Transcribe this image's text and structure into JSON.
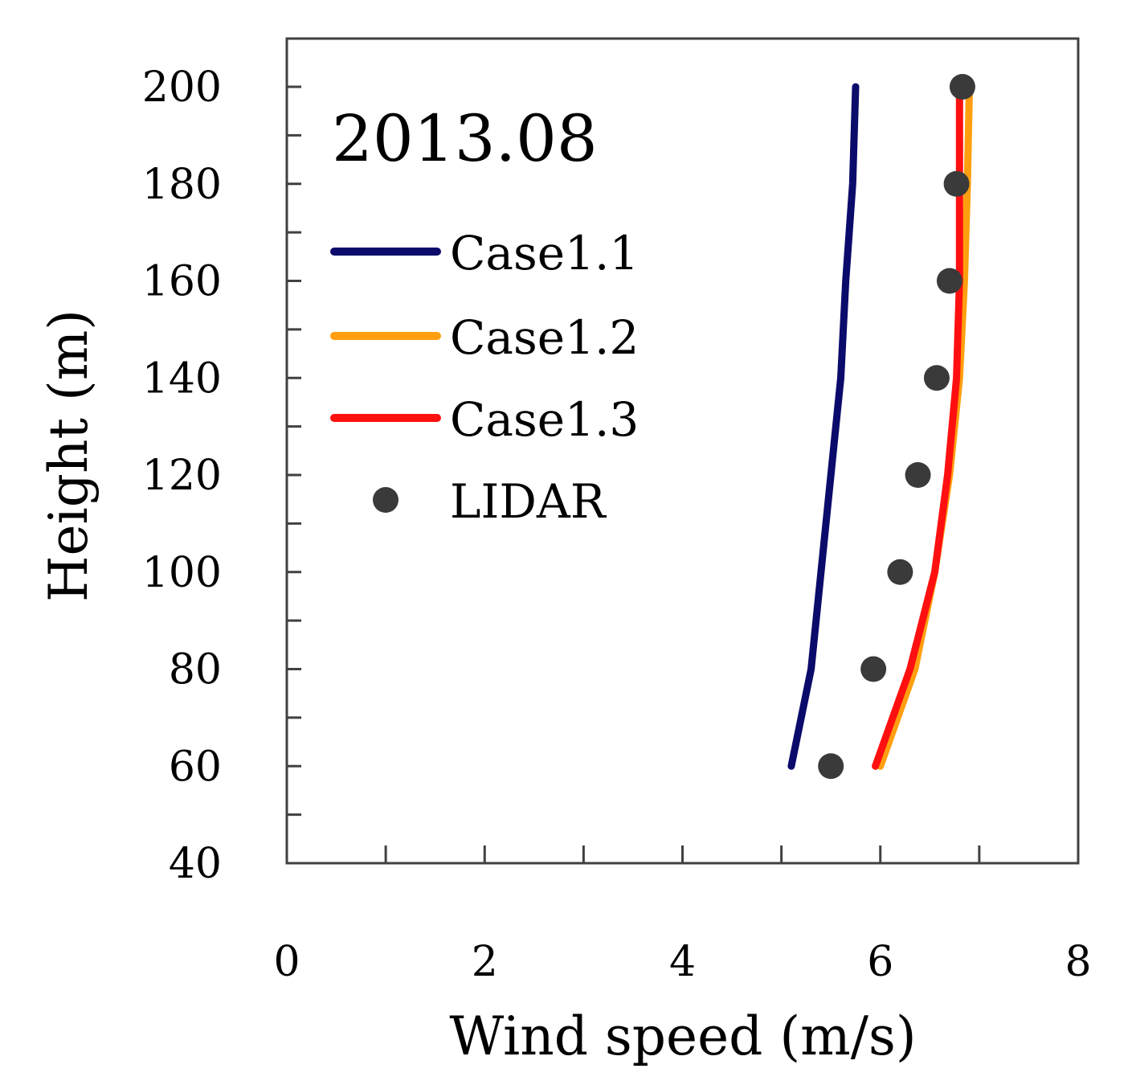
{
  "chart_data": {
    "type": "line",
    "title": "",
    "annotation": "2013.08",
    "xlabel": "Wind speed (m/s)",
    "ylabel": "Height (m)",
    "xlim": [
      0,
      8
    ],
    "ylim": [
      40,
      210
    ],
    "xticks": [
      0,
      2,
      4,
      6,
      8
    ],
    "xminor": [
      1,
      3,
      5,
      7
    ],
    "yticks": [
      40,
      60,
      80,
      100,
      120,
      140,
      160,
      180,
      200
    ],
    "yminor": [
      50,
      70,
      90,
      110,
      130,
      150,
      170,
      190
    ],
    "grid": false,
    "legend_position": "top-left",
    "series": [
      {
        "name": "Case1.1",
        "kind": "line",
        "color": "#0b0b6b",
        "points": [
          [
            5.1,
            60
          ],
          [
            5.3,
            80
          ],
          [
            5.4,
            100
          ],
          [
            5.5,
            120
          ],
          [
            5.6,
            140
          ],
          [
            5.65,
            160
          ],
          [
            5.72,
            180
          ],
          [
            5.75,
            200
          ]
        ]
      },
      {
        "name": "Case1.2",
        "kind": "line",
        "color": "#ff9f0f",
        "points": [
          [
            6.0,
            60
          ],
          [
            6.35,
            80
          ],
          [
            6.55,
            100
          ],
          [
            6.7,
            120
          ],
          [
            6.8,
            140
          ],
          [
            6.85,
            160
          ],
          [
            6.88,
            180
          ],
          [
            6.9,
            200
          ]
        ]
      },
      {
        "name": "Case1.3",
        "kind": "line",
        "color": "#ff1010",
        "points": [
          [
            5.95,
            60
          ],
          [
            6.3,
            80
          ],
          [
            6.55,
            100
          ],
          [
            6.68,
            120
          ],
          [
            6.77,
            140
          ],
          [
            6.8,
            160
          ],
          [
            6.8,
            180
          ],
          [
            6.8,
            200
          ]
        ]
      },
      {
        "name": "LIDAR",
        "kind": "scatter",
        "color": "#3a3a3a",
        "points": [
          [
            5.5,
            60
          ],
          [
            5.93,
            80
          ],
          [
            6.2,
            100
          ],
          [
            6.38,
            120
          ],
          [
            6.57,
            140
          ],
          [
            6.7,
            160
          ],
          [
            6.77,
            180
          ],
          [
            6.83,
            200
          ]
        ]
      }
    ]
  }
}
